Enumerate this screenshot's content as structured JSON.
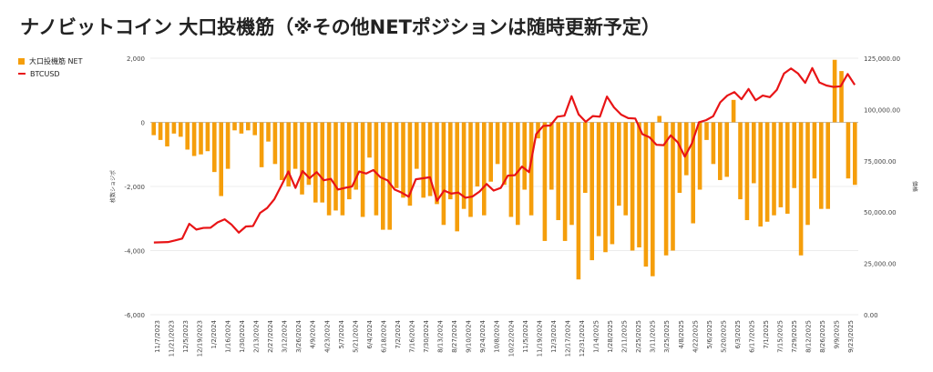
{
  "page": {
    "title": "ナノビットコイン 大口投機筋（※その他NETポジションは随時更新予定）"
  },
  "chart_data": {
    "type": "bar+line",
    "title": "ナノビットコイン 大口投機筋（※その他NETポジションは随時更新予定）",
    "legend": [
      {
        "name": "大口投機筋  NET",
        "color": "#f59e0b",
        "kind": "bar"
      },
      {
        "name": "BTCUSD",
        "color": "#e81416",
        "kind": "line"
      }
    ],
    "legend_position": "top-left",
    "ylabel_left": "枚数ショジポ",
    "ylabel_right": "価格",
    "ylim_left": [
      -6000,
      2000
    ],
    "yticks_left": [
      2000,
      0,
      -2000,
      -4000,
      -6000
    ],
    "ytick_labels_left": [
      "2,000",
      "0",
      "-2,000",
      "-4,000",
      "-6,000"
    ],
    "ylim_right": [
      0,
      125000
    ],
    "yticks_right": [
      125000,
      100000,
      75000,
      50000,
      25000,
      0
    ],
    "ytick_labels_right": [
      "125,000.00",
      "100,000.00",
      "75,000.00",
      "50,000.00",
      "25,000.00",
      "0.00"
    ],
    "x_tick_labels": [
      "11/7/2023",
      "11/21/2023",
      "12/5/2023",
      "12/19/2023",
      "1/2/2024",
      "1/16/2024",
      "1/30/2024",
      "2/13/2024",
      "2/27/2024",
      "3/12/2024",
      "3/26/2024",
      "4/9/2024",
      "4/23/2024",
      "5/7/2024",
      "5/21/2024",
      "6/4/2024",
      "6/18/2024",
      "7/2/2024",
      "7/16/2024",
      "7/30/2024",
      "8/13/2024",
      "8/27/2024",
      "9/10/2024",
      "9/24/2024",
      "10/8/2024",
      "10/22/2024",
      "11/5/2024",
      "11/19/2024",
      "12/3/2024",
      "12/17/2024",
      "12/31/2024",
      "1/14/2025",
      "1/28/2025",
      "2/11/2025",
      "2/25/2025",
      "3/11/2025",
      "3/25/2025",
      "4/8/2025",
      "4/22/2025",
      "5/6/2025",
      "5/20/2025",
      "6/3/2025",
      "6/17/2025",
      "7/1/2025",
      "7/15/2025",
      "7/29/2025",
      "8/12/2025",
      "8/26/2025",
      "9/9/2025",
      "9/23/2025"
    ],
    "net_positions": [
      -400,
      -550,
      -750,
      -350,
      -450,
      -850,
      -1050,
      -1000,
      -900,
      -1550,
      -2300,
      -1450,
      -250,
      -350,
      -250,
      -400,
      -1400,
      -600,
      -1300,
      -1800,
      -2000,
      -1450,
      -2250,
      -1950,
      -2500,
      -2500,
      -2900,
      -2750,
      -2900,
      -2400,
      -2100,
      -2950,
      -1100,
      -2900,
      -3350,
      -3350,
      -2050,
      -2350,
      -2600,
      -1450,
      -2350,
      -2300,
      -2550,
      -3200,
      -2400,
      -3400,
      -2700,
      -2950,
      -2000,
      -2900,
      -1850,
      -1300,
      -1950,
      -2950,
      -3200,
      -2100,
      -2900,
      -500,
      -3700,
      -2100,
      -3050,
      -3700,
      -3200,
      -4900,
      -2200,
      -4300,
      -3550,
      -4050,
      -3800,
      -2600,
      -2900,
      -4000,
      -3900,
      -4500,
      -4800,
      200,
      -4150,
      -4000,
      -2200,
      -1650,
      -3150,
      -2100,
      -550,
      -1300,
      -1800,
      -1700,
      700,
      -2400,
      -3050,
      -1900,
      -3250,
      -3100,
      -2900,
      -2650,
      -2850,
      -2050,
      -4150,
      -3200,
      -1750,
      -2700,
      -2700,
      1950,
      1600,
      -1750,
      -1950
    ],
    "btcusd": [
      35200,
      35300,
      35400,
      36200,
      37100,
      44300,
      41500,
      42300,
      42400,
      45000,
      46500,
      43800,
      40000,
      43000,
      43200,
      49600,
      52000,
      56200,
      62900,
      69800,
      61800,
      70000,
      66500,
      69500,
      65500,
      66200,
      61000,
      61800,
      62500,
      69800,
      68800,
      70500,
      67000,
      65500,
      61000,
      59500,
      57500,
      66000,
      66500,
      67000,
      55500,
      60500,
      59000,
      59500,
      57000,
      57600,
      60000,
      63700,
      60500,
      61800,
      67800,
      68000,
      72200,
      69500,
      88000,
      92000,
      92200,
      96500,
      97000,
      106500,
      97600,
      94000,
      96800,
      96500,
      106300,
      101000,
      97500,
      95800,
      95600,
      88000,
      86500,
      82800,
      82600,
      87400,
      84000,
      77000,
      83500,
      93800,
      94800,
      96700,
      103500,
      106800,
      108500,
      105000,
      110000,
      104500,
      106800,
      106000,
      109600,
      117500,
      120000,
      117500,
      113000,
      120200,
      113200,
      111700,
      111000,
      111300,
      117300,
      112000
    ]
  }
}
